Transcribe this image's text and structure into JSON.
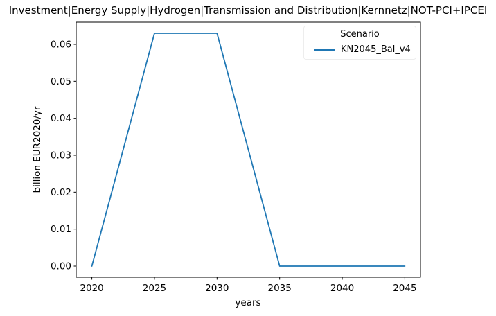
{
  "chart_data": {
    "type": "line",
    "title": "Investment|Energy Supply|Hydrogen|Transmission and Distribution|Kernnetz|NOT-PCI+IPCEI",
    "xlabel": "years",
    "ylabel": "billion EUR2020/yr",
    "x": [
      2020,
      2025,
      2030,
      2035,
      2040,
      2045
    ],
    "series": [
      {
        "name": "KN2045_Bal_v4",
        "color": "#1f77b4",
        "values": [
          0.0,
          0.063,
          0.063,
          0.0,
          0.0,
          0.0
        ]
      }
    ],
    "xticks": [
      2020,
      2025,
      2030,
      2035,
      2040,
      2045
    ],
    "ytick_labels": [
      "0.00",
      "0.01",
      "0.02",
      "0.03",
      "0.04",
      "0.05",
      "0.06"
    ],
    "xlim": [
      2018.75,
      2046.25
    ],
    "ylim": [
      -0.003,
      0.066
    ],
    "grid": false,
    "legend": {
      "title": "Scenario",
      "position": "upper right"
    },
    "colors": {
      "spine": "#000000",
      "text": "#000000"
    }
  }
}
